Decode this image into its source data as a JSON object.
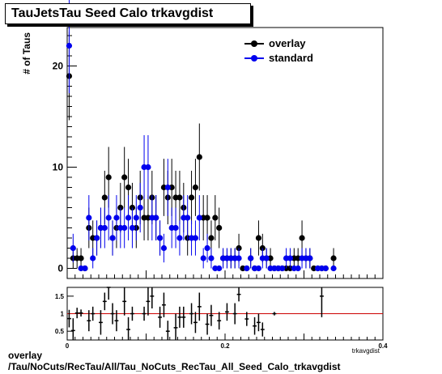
{
  "title": "TauJetsTau Seed Calo trkavgdist",
  "footer": {
    "line1": "overlay",
    "line2": "/Tau/NoCuts/RecTau/All/Tau_NoCuts_RecTau_All_Seed_Calo_trkavgdist"
  },
  "colors": {
    "overlay": "#000000",
    "standard": "#0000ee",
    "ratio_line": "#cc0000"
  },
  "chart_data": [
    {
      "type": "scatter",
      "ylabel": "# of Taus",
      "xlabel": "",
      "xlim": [
        0,
        0.4
      ],
      "ylim": [
        -1,
        23.8
      ],
      "y_ticks": [
        0,
        10,
        20
      ],
      "legend": [
        "overlay",
        "standard"
      ],
      "legend_position": "top-right",
      "series": [
        {
          "name": "overlay",
          "color": "#000000",
          "x": [
            0.0025,
            0.0075,
            0.0125,
            0.0175,
            0.0225,
            0.0275,
            0.0325,
            0.0375,
            0.0425,
            0.0475,
            0.0525,
            0.0575,
            0.0625,
            0.0675,
            0.0725,
            0.0775,
            0.0825,
            0.0875,
            0.0925,
            0.0975,
            0.1025,
            0.1075,
            0.1125,
            0.1175,
            0.1225,
            0.1275,
            0.1325,
            0.1375,
            0.1425,
            0.1475,
            0.1525,
            0.1575,
            0.1625,
            0.1675,
            0.1725,
            0.1775,
            0.1825,
            0.1875,
            0.1925,
            0.1975,
            0.2025,
            0.2075,
            0.2125,
            0.2175,
            0.2225,
            0.2275,
            0.2325,
            0.2375,
            0.2425,
            0.2475,
            0.2525,
            0.2575,
            0.2625,
            0.2675,
            0.2725,
            0.2775,
            0.2825,
            0.2875,
            0.2925,
            0.2975,
            0.3025,
            0.3075,
            0.3125,
            0.3175,
            0.3225,
            0.3275,
            0.3375
          ],
          "y": [
            19,
            1,
            1,
            1,
            0,
            4,
            3,
            3,
            4,
            7,
            9,
            3,
            4,
            6,
            9,
            8,
            6,
            4,
            7,
            5,
            5,
            7,
            5,
            3,
            8,
            7,
            8,
            7,
            7,
            6,
            3,
            7,
            8,
            11,
            5,
            5,
            3,
            5,
            4,
            1,
            1,
            1,
            1,
            2,
            0,
            0,
            1,
            0,
            3,
            2,
            1,
            1,
            0,
            0,
            0,
            0,
            0,
            1,
            1,
            3,
            1,
            1,
            0,
            0,
            0,
            0,
            1
          ]
        },
        {
          "name": "standard",
          "color": "#0000ee",
          "x": [
            0.0025,
            0.0075,
            0.0175,
            0.0225,
            0.0275,
            0.0325,
            0.0375,
            0.0425,
            0.0475,
            0.0525,
            0.0575,
            0.0625,
            0.0675,
            0.0725,
            0.0775,
            0.0825,
            0.0875,
            0.0925,
            0.0975,
            0.1025,
            0.1075,
            0.1125,
            0.1175,
            0.1225,
            0.1275,
            0.1325,
            0.1375,
            0.1425,
            0.1475,
            0.1525,
            0.1575,
            0.1625,
            0.1675,
            0.1725,
            0.1775,
            0.1825,
            0.1875,
            0.1925,
            0.1975,
            0.2025,
            0.2075,
            0.2125,
            0.2175,
            0.2275,
            0.2325,
            0.2375,
            0.2425,
            0.2475,
            0.2525,
            0.2575,
            0.2625,
            0.2675,
            0.2725,
            0.2775,
            0.2825,
            0.2875,
            0.2925,
            0.2975,
            0.3025,
            0.3075,
            0.3175,
            0.3225,
            0.3275,
            0.3375
          ],
          "y": [
            22,
            2,
            0,
            0,
            5,
            1,
            3,
            4,
            4,
            5,
            3,
            5,
            4,
            4,
            5,
            4,
            5,
            6,
            10,
            10,
            5,
            5,
            3,
            2,
            8,
            4,
            4,
            3,
            5,
            5,
            3,
            3,
            5,
            1,
            2,
            1,
            0,
            0,
            1,
            1,
            1,
            1,
            1,
            0,
            1,
            0,
            0,
            1,
            1,
            0,
            0,
            0,
            0,
            1,
            1,
            0,
            0,
            1,
            1,
            1,
            0,
            0,
            0,
            0
          ]
        }
      ]
    },
    {
      "type": "scatter",
      "title": "",
      "xlabel": "trkavgdist",
      "xlim": [
        0,
        0.4
      ],
      "ylim": [
        0.25,
        1.75
      ],
      "x_ticks": [
        0,
        0.2,
        0.4
      ],
      "x_tick_labels": [
        "0",
        "0.2",
        "0.4"
      ],
      "y_ticks": [
        0.5,
        1,
        1.5
      ],
      "y_tick_labels": [
        "0.5",
        "1",
        "1.5"
      ],
      "reference_line": 1,
      "series": [
        {
          "name": "ratio",
          "x": [
            0.0025,
            0.0075,
            0.0125,
            0.0175,
            0.0275,
            0.0325,
            0.0425,
            0.0475,
            0.0525,
            0.0575,
            0.0625,
            0.0725,
            0.0775,
            0.0825,
            0.0975,
            0.1025,
            0.1075,
            0.1175,
            0.1225,
            0.1275,
            0.1375,
            0.1425,
            0.1475,
            0.1575,
            0.1625,
            0.1675,
            0.1775,
            0.1825,
            0.1925,
            0.2025,
            0.2125,
            0.2175,
            0.2275,
            0.2375,
            0.2425,
            0.2475,
            0.2625,
            0.3225
          ],
          "y": [
            0.86,
            0.52,
            1.02,
            1.02,
            0.8,
            1.0,
            0.75,
            1.35,
            1.8,
            1.0,
            0.8,
            1.35,
            0.55,
            1.0,
            1.0,
            1.35,
            1.5,
            0.9,
            1.25,
            0.5,
            0.6,
            0.9,
            0.9,
            1.0,
            0.75,
            1.2,
            0.7,
            0.95,
            0.8,
            1.05,
            1.0,
            1.55,
            0.85,
            0.65,
            0.75,
            0.55,
            1.0,
            1.5
          ],
          "yerr": [
            0.25,
            0.35,
            0.15,
            0.1,
            0.3,
            0.2,
            0.35,
            0.25,
            0.4,
            0.3,
            0.3,
            0.4,
            0.35,
            0.2,
            0.2,
            0.4,
            0.35,
            0.3,
            0.35,
            0.3,
            0.4,
            0.3,
            0.3,
            0.3,
            0.3,
            0.4,
            0.3,
            0.3,
            0.25,
            0.25,
            0.3,
            0.2,
            0.2,
            0.25,
            0.25,
            0.2,
            0.05,
            0.6
          ]
        }
      ]
    }
  ]
}
